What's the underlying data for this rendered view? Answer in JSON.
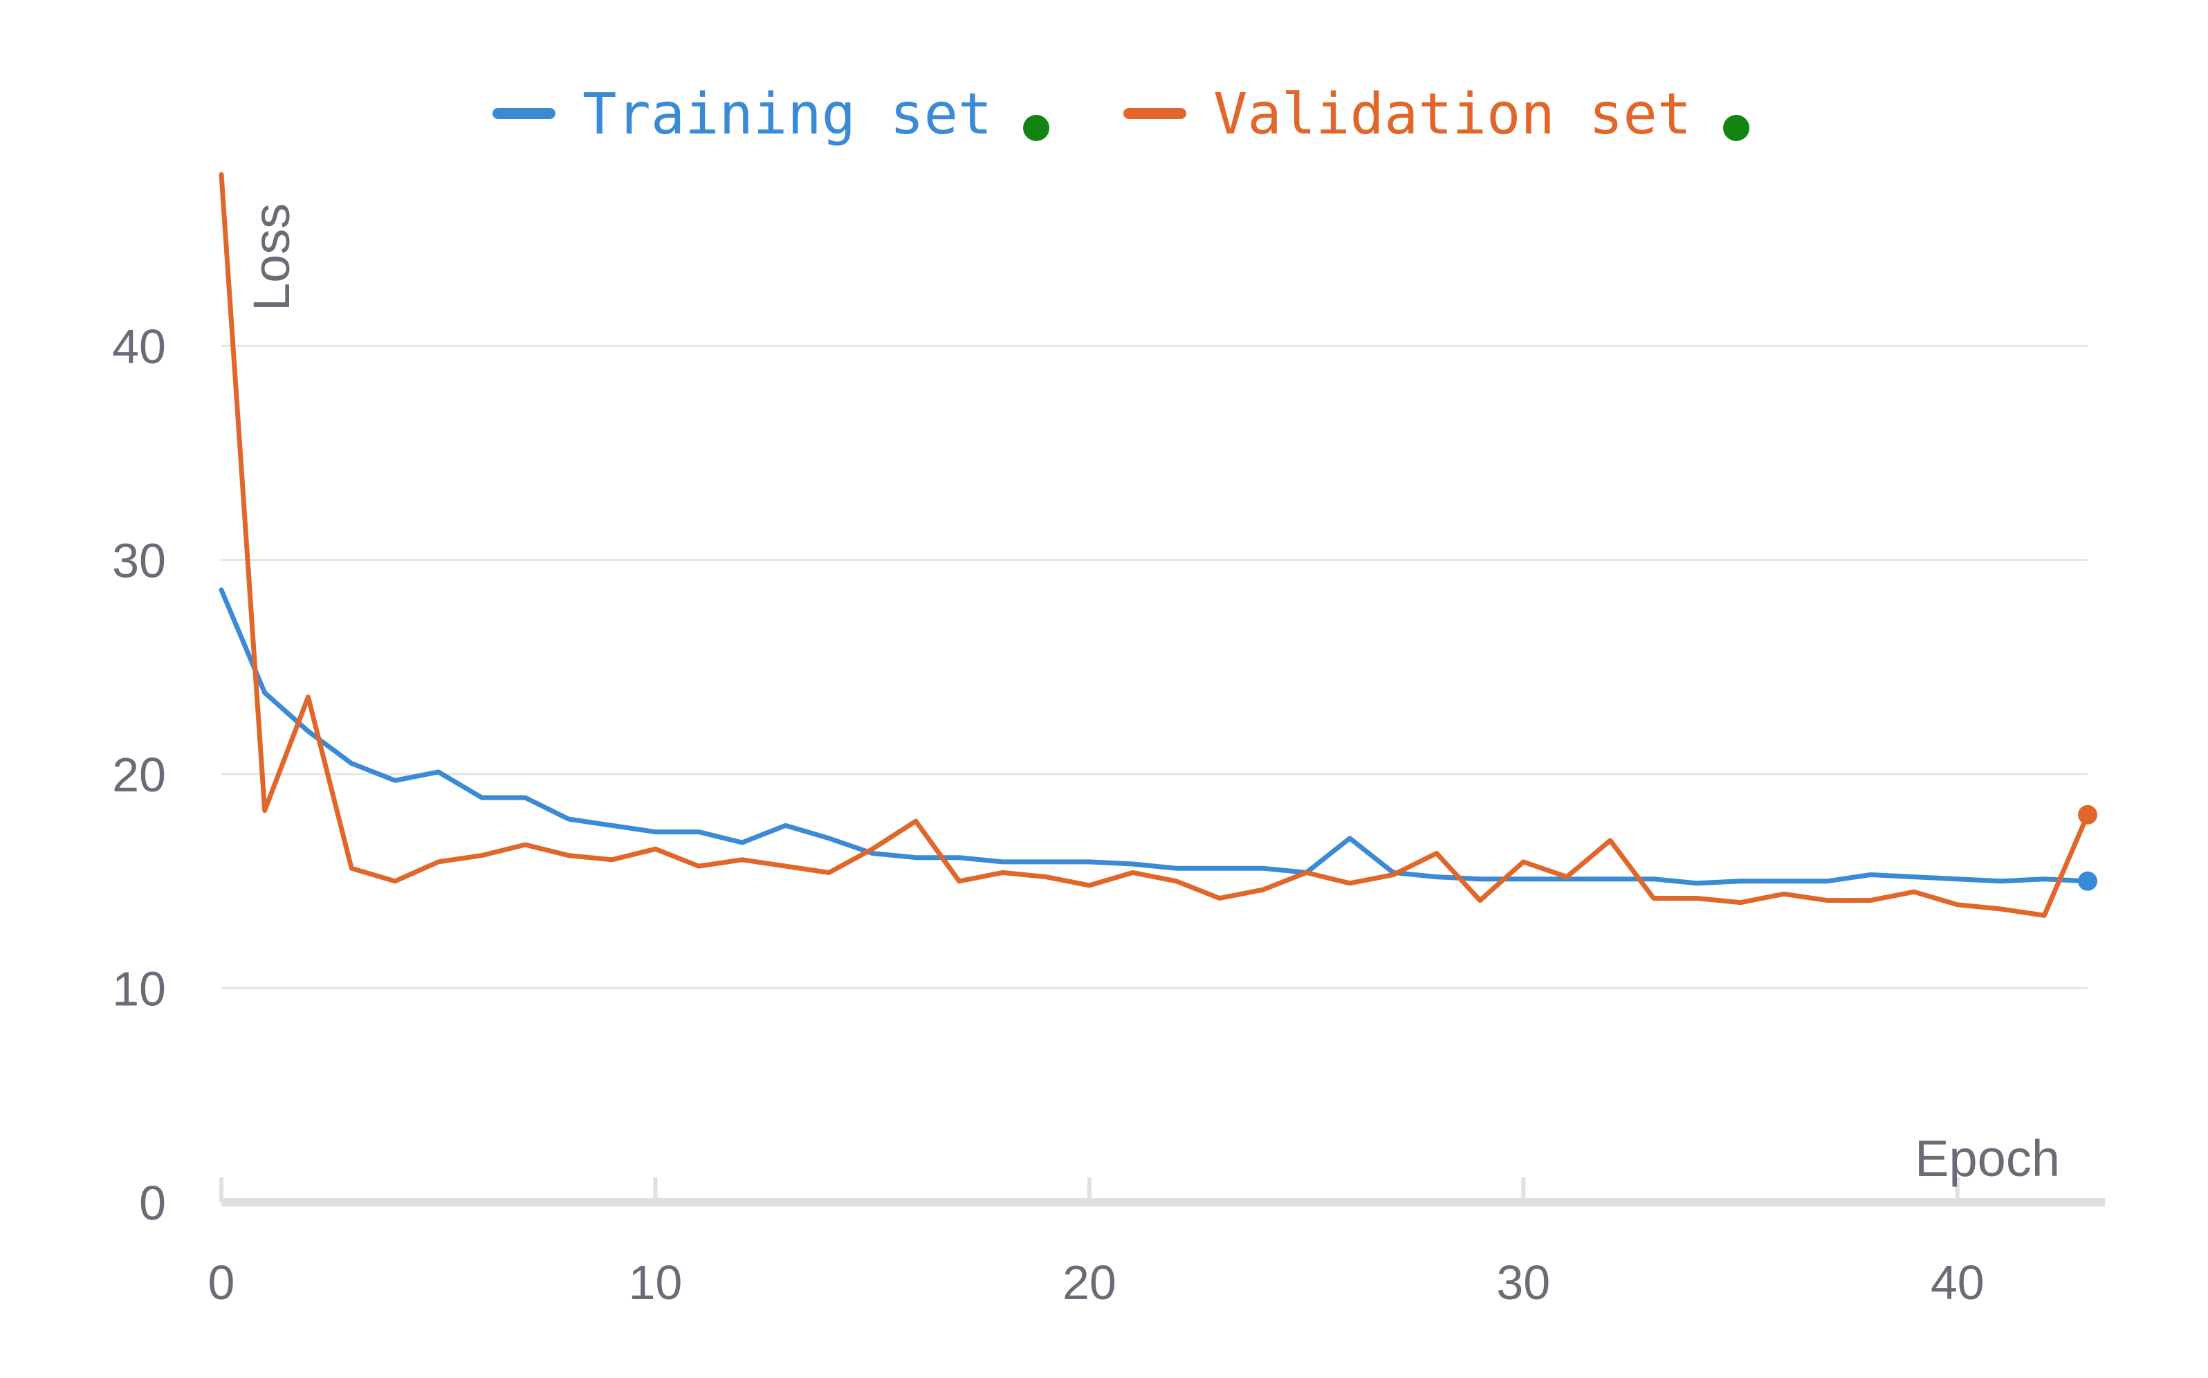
{
  "chart_data": {
    "type": "line",
    "xlabel": "Epoch",
    "ylabel": "Loss",
    "xlim": [
      0,
      43
    ],
    "ylim": [
      0,
      48
    ],
    "x_ticks": [
      "0",
      "10",
      "20",
      "30",
      "40"
    ],
    "y_ticks": [
      "0",
      "10",
      "20",
      "30",
      "40"
    ],
    "grid": "horizontal",
    "legend_position": "top-center",
    "x": [
      0,
      1,
      2,
      3,
      4,
      5,
      6,
      7,
      8,
      9,
      10,
      11,
      12,
      13,
      14,
      15,
      16,
      17,
      18,
      19,
      20,
      21,
      22,
      23,
      24,
      25,
      26,
      27,
      28,
      29,
      30,
      31,
      32,
      33,
      34,
      35,
      36,
      37,
      38,
      39,
      40,
      41,
      42,
      43
    ],
    "series": [
      {
        "name": "Training set",
        "color": "#3a8ad6",
        "marker_color": "#128412",
        "values": [
          28.6,
          23.8,
          22.0,
          20.5,
          19.7,
          20.1,
          18.9,
          18.9,
          17.9,
          17.6,
          17.3,
          17.3,
          16.8,
          17.6,
          17.0,
          16.3,
          16.1,
          16.1,
          15.9,
          15.9,
          15.9,
          15.8,
          15.6,
          15.6,
          15.6,
          15.4,
          17.0,
          15.4,
          15.2,
          15.1,
          15.1,
          15.1,
          15.1,
          15.1,
          14.9,
          15.0,
          15.0,
          15.0,
          15.3,
          15.2,
          15.1,
          15.0,
          15.1,
          15.0
        ]
      },
      {
        "name": "Validation set",
        "color": "#e0662a",
        "marker_color": "#128412",
        "values": [
          48.0,
          18.3,
          23.6,
          15.6,
          15.0,
          15.9,
          16.2,
          16.7,
          16.2,
          16.0,
          16.5,
          15.7,
          16.0,
          15.7,
          15.4,
          16.5,
          17.8,
          15.0,
          15.4,
          15.2,
          14.8,
          15.4,
          15.0,
          14.2,
          14.6,
          15.4,
          14.9,
          15.3,
          16.3,
          14.1,
          15.9,
          15.2,
          16.9,
          14.2,
          14.2,
          14.0,
          14.4,
          14.1,
          14.1,
          14.5,
          13.9,
          13.7,
          13.4,
          18.1
        ]
      }
    ]
  }
}
